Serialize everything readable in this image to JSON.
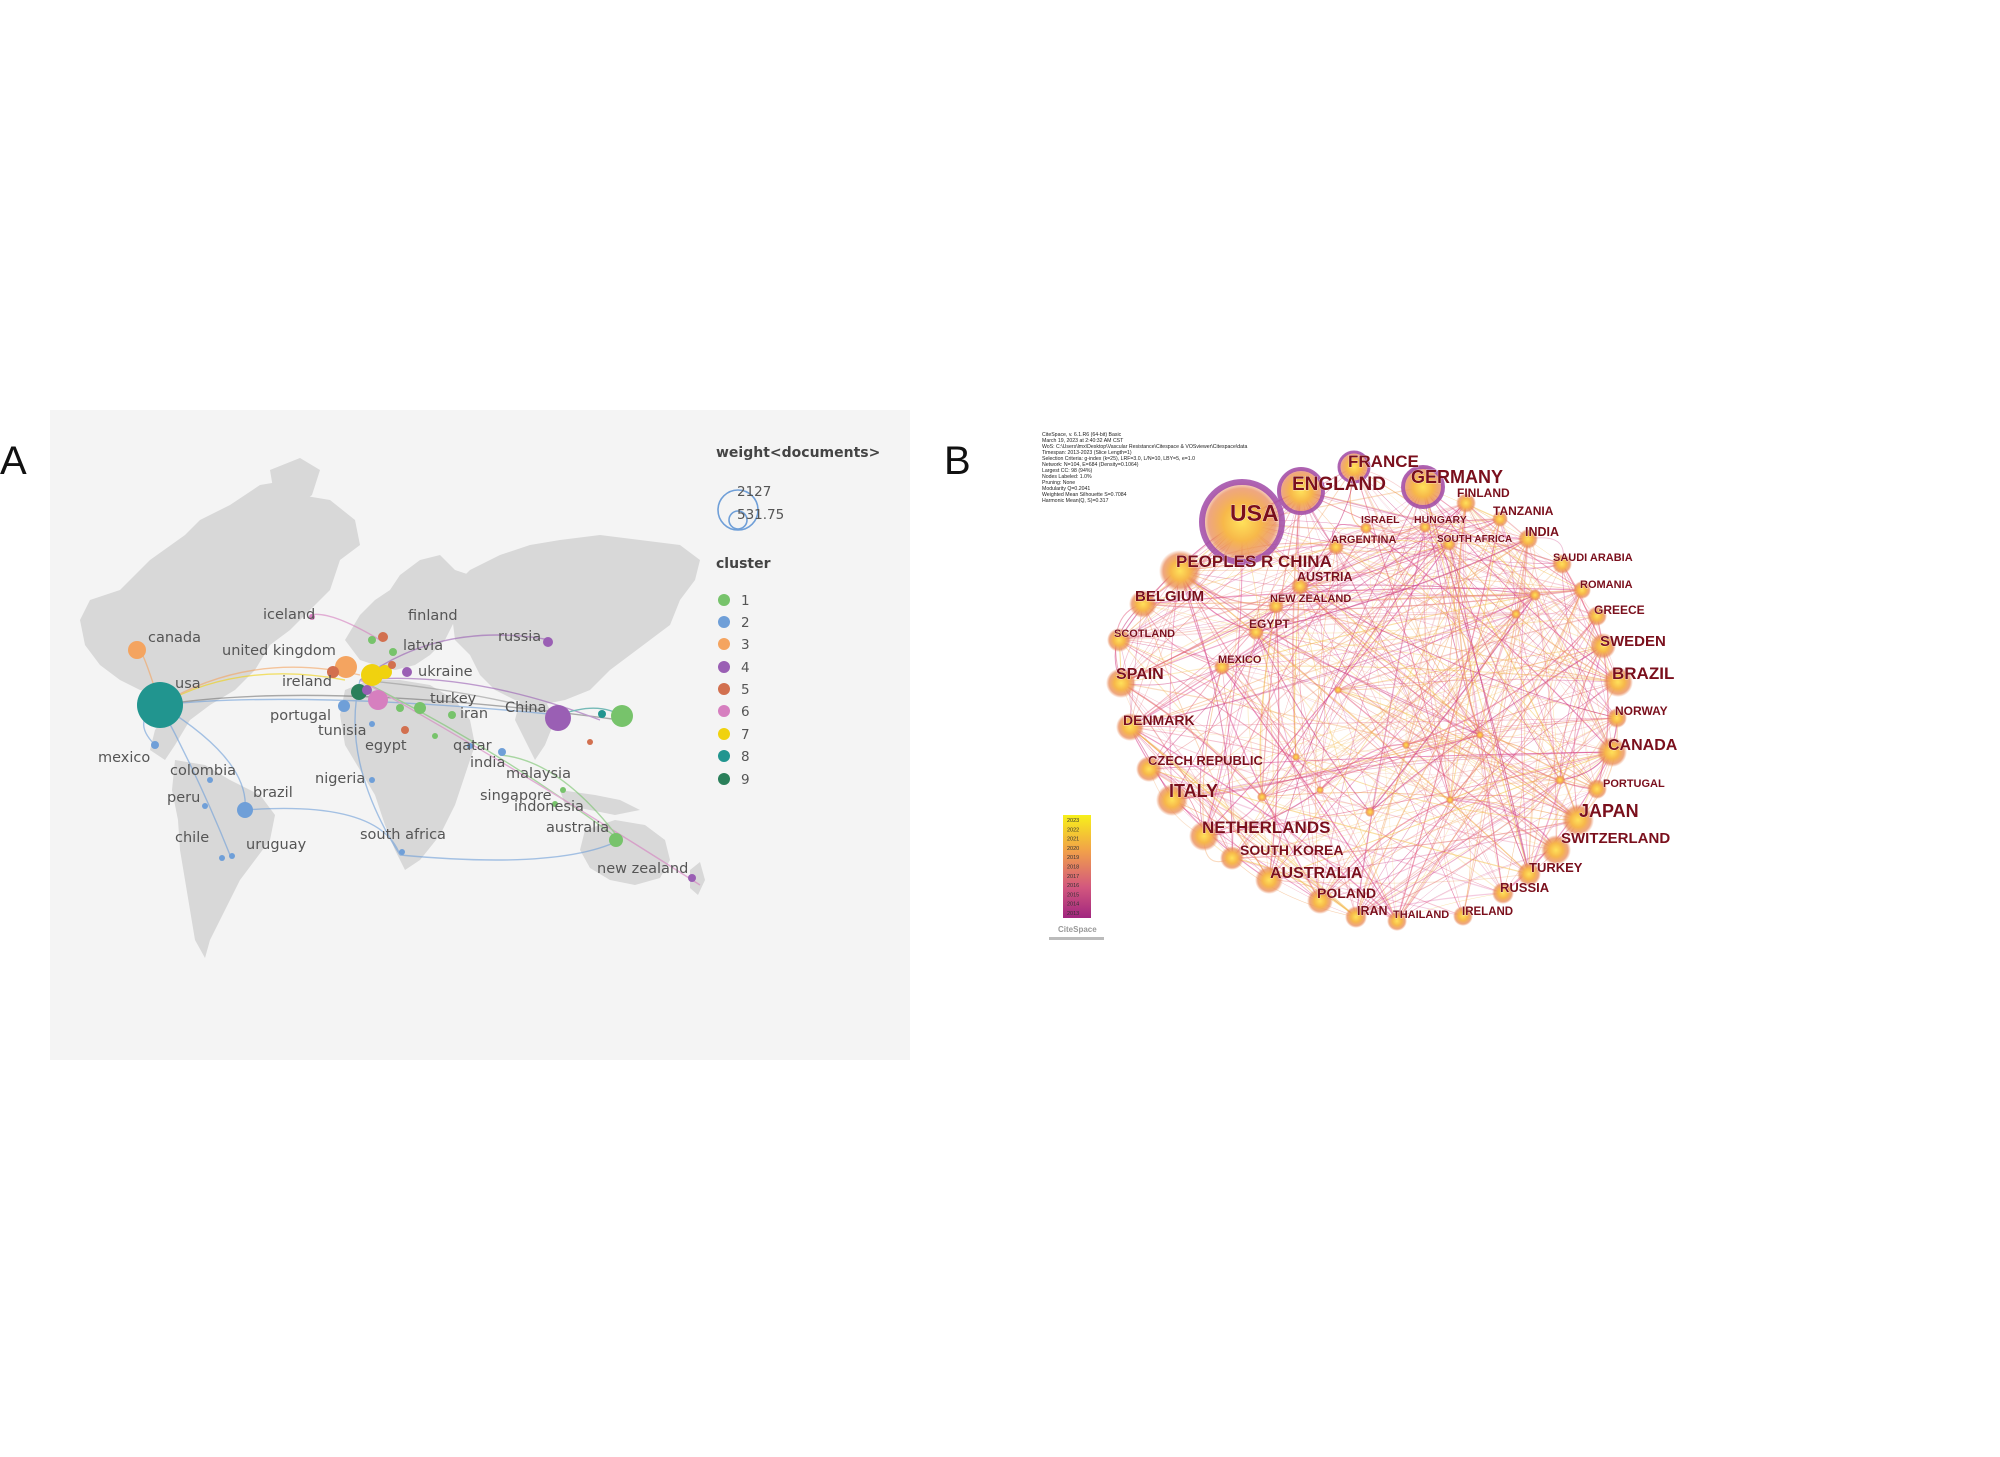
{
  "panels": {
    "a_letter": "A",
    "b_letter": "B"
  },
  "map": {
    "legend_weight_title": "weight<documents>",
    "legend_weight_values": [
      "2127",
      "531.75"
    ],
    "legend_cluster_title": "cluster",
    "clusters": [
      {
        "id": "1",
        "color": "#77c36b"
      },
      {
        "id": "2",
        "color": "#6f9fd8"
      },
      {
        "id": "3",
        "color": "#f4a460"
      },
      {
        "id": "4",
        "color": "#9a5fb4"
      },
      {
        "id": "5",
        "color": "#d2704f"
      },
      {
        "id": "6",
        "color": "#d67fbf"
      },
      {
        "id": "7",
        "color": "#f0d20f"
      },
      {
        "id": "8",
        "color": "#21958f"
      },
      {
        "id": "9",
        "color": "#2a7f5a"
      }
    ],
    "country_labels": [
      "iceland",
      "finland",
      "canada",
      "united kingdom",
      "latvia",
      "russia",
      "usa",
      "ireland",
      "ukraine",
      "turkey",
      "portugal",
      "iran",
      "China",
      "tunisia",
      "mexico",
      "egypt",
      "qatar",
      "colombia",
      "india",
      "malaysia",
      "nigeria",
      "peru",
      "brazil",
      "singapore",
      "indonesia",
      "australia",
      "chile",
      "uruguay",
      "south africa",
      "new zealand"
    ]
  },
  "network": {
    "meta_lines": [
      "CiteSpace, v. 6.1.R6 (64-bit) Basic",
      "March 19, 2023 at 2:40:32 AM CST",
      "WoS: C:\\Users\\lmx\\Desktop\\Vascular Resistance\\Citespace & VOSviewer\\Citespace\\data",
      "Timespan: 2013-2023 (Slice Length=1)",
      "Selection Criteria: g-index (k=25), LRF=3.0, L/N=10, LBY=5, e=1.0",
      "Network: N=104, E=684 (Density=0.1064)",
      "Largest CC: 98 (94%)",
      "Nodes Labeled: 1.0%",
      "Pruning: None",
      "Modularity Q=0.2041",
      "Weighted Mean Silhouette S=0.7084",
      "Harmonic Mean(Q, S)=0.317"
    ],
    "year_scale": [
      "2023",
      "2022",
      "2021",
      "2020",
      "2019",
      "2018",
      "2017",
      "2016",
      "2015",
      "2014",
      "2013"
    ],
    "logo_text": "CiteSpace",
    "country_labels": [
      "FRANCE",
      "ENGLAND",
      "GERMANY",
      "USA",
      "FINLAND",
      "TANZANIA",
      "ISRAEL",
      "HUNGARY",
      "ARGENTINA",
      "SOUTH AFRICA",
      "INDIA",
      "PEOPLES R CHINA",
      "SAUDI ARABIA",
      "AUSTRIA",
      "BELGIUM",
      "NEW ZEALAND",
      "ROMANIA",
      "GREECE",
      "EGYPT",
      "SCOTLAND",
      "SWEDEN",
      "MEXICO",
      "BRAZIL",
      "SPAIN",
      "NORWAY",
      "DENMARK",
      "CANADA",
      "CZECH REPUBLIC",
      "PORTUGAL",
      "ITALY",
      "JAPAN",
      "NETHERLANDS",
      "SWITZERLAND",
      "SOUTH KOREA",
      "TURKEY",
      "AUSTRALIA",
      "RUSSIA",
      "POLAND",
      "IRAN",
      "THAILAND",
      "IRELAND"
    ]
  }
}
